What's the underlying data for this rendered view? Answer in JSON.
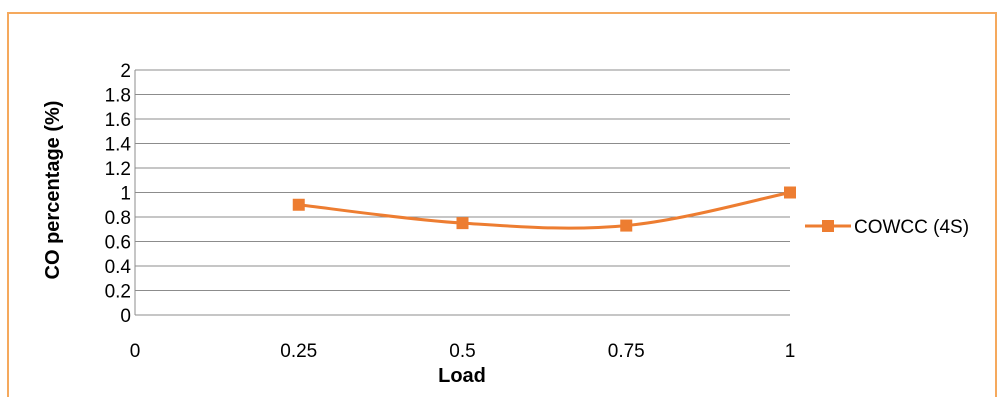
{
  "chart_data": {
    "type": "line",
    "title": "",
    "xlabel": "Load",
    "ylabel": "CO percentage (%)",
    "x_ticks": [
      "0",
      "0.25",
      "0.5",
      "0.75",
      "1"
    ],
    "y_ticks": [
      "0",
      "0.2",
      "0.4",
      "0.6",
      "0.8",
      "1",
      "1.2",
      "1.4",
      "1.6",
      "1.8",
      "2"
    ],
    "ylim": [
      0,
      2
    ],
    "xlim": [
      0,
      1
    ],
    "grid": "horizontal",
    "legend_position": "right",
    "series": [
      {
        "name": "COWCC (4S)",
        "color": "#ed7d31",
        "marker": "square",
        "smooth": true,
        "x": [
          0.25,
          0.5,
          0.75,
          1
        ],
        "y": [
          0.9,
          0.75,
          0.73,
          1.0
        ]
      }
    ]
  }
}
